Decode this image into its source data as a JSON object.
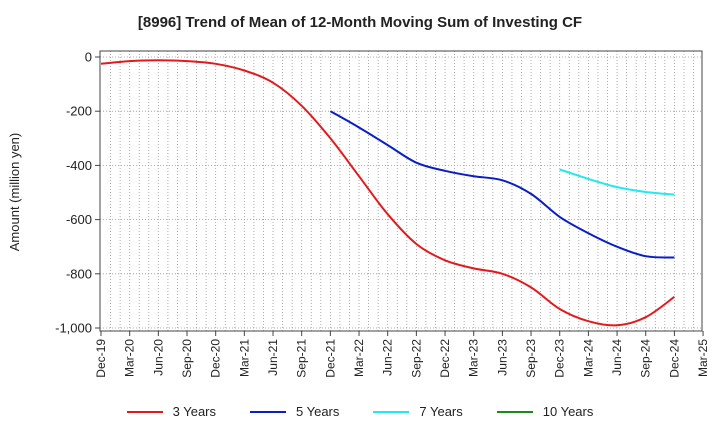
{
  "chart_data": {
    "type": "line",
    "title": "[8996]  Trend of Mean of 12-Month Moving Sum of Investing CF",
    "xlabel": "",
    "ylabel": "Amount (million yen)",
    "ylim": [
      -1000,
      0
    ],
    "yticks": [
      0,
      -200,
      -400,
      -600,
      -800,
      -1000
    ],
    "ytick_labels": [
      "0",
      "-200",
      "-400",
      "-600",
      "-800",
      "-1,000"
    ],
    "x_tick_labels": [
      "Dec-19",
      "Mar-20",
      "Jun-20",
      "Sep-20",
      "Dec-20",
      "Mar-21",
      "Jun-21",
      "Sep-21",
      "Dec-21",
      "Mar-22",
      "Jun-22",
      "Sep-22",
      "Dec-22",
      "Mar-23",
      "Jun-23",
      "Sep-23",
      "Dec-23",
      "Mar-24",
      "Jun-24",
      "Sep-24",
      "Dec-24",
      "Mar-25"
    ],
    "x_range_quarters": [
      0,
      21
    ],
    "grid": true,
    "legend_position": "bottom",
    "series": [
      {
        "name": "3 Years",
        "color": "#e31a1c",
        "start_quarter": 0,
        "values": [
          -25,
          -15,
          -12,
          -15,
          -25,
          -50,
          -95,
          -180,
          -300,
          -440,
          -580,
          -690,
          -750,
          -780,
          -800,
          -850,
          -930,
          -975,
          -990,
          -960,
          -885
        ]
      },
      {
        "name": "5 Years",
        "color": "#0a1ec8",
        "start_quarter": 8,
        "values": [
          -200,
          -260,
          -325,
          -390,
          -420,
          -440,
          -455,
          -505,
          -590,
          -650,
          -700,
          -735,
          -740
        ]
      },
      {
        "name": "7 Years",
        "color": "#22e8ef",
        "start_quarter": 16,
        "values": [
          -415,
          -450,
          -480,
          -498,
          -508
        ]
      },
      {
        "name": "10 Years",
        "color": "#1a8a1a",
        "start_quarter": 20,
        "values": []
      }
    ]
  }
}
